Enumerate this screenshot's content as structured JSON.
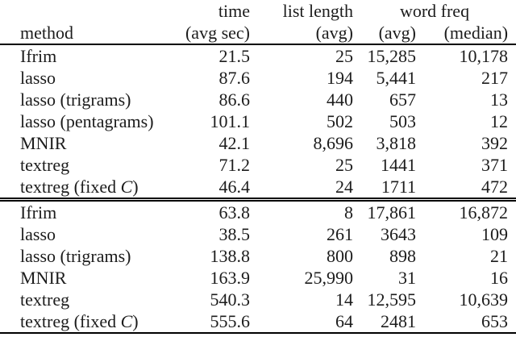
{
  "table": {
    "header": {
      "group": {
        "method": "",
        "time": "time",
        "list_length": "list length",
        "word_freq": "word freq"
      },
      "sub": {
        "method": "method",
        "time": "(avg sec)",
        "list_length": "(avg)",
        "word_freq_avg": "(avg)",
        "word_freq_median": "(median)"
      }
    },
    "sections": [
      {
        "rows": [
          {
            "method": [
              {
                "t": "Ifrim"
              }
            ],
            "time": "21.5",
            "list_length": "25",
            "wf_avg": "15,285",
            "wf_median": "10,178"
          },
          {
            "method": [
              {
                "t": "lasso"
              }
            ],
            "time": "87.6",
            "list_length": "194",
            "wf_avg": "5,441",
            "wf_median": "217"
          },
          {
            "method": [
              {
                "t": "lasso (trigrams)"
              }
            ],
            "time": "86.6",
            "list_length": "440",
            "wf_avg": "657",
            "wf_median": "13"
          },
          {
            "method": [
              {
                "t": "lasso (pentagrams)"
              }
            ],
            "time": "101.1",
            "list_length": "502",
            "wf_avg": "503",
            "wf_median": "12"
          },
          {
            "method": [
              {
                "t": "MNIR"
              }
            ],
            "time": "42.1",
            "list_length": "8,696",
            "wf_avg": "3,818",
            "wf_median": "392"
          },
          {
            "method": [
              {
                "t": "textreg"
              }
            ],
            "time": "71.2",
            "list_length": "25",
            "wf_avg": "1441",
            "wf_median": "371"
          },
          {
            "method": [
              {
                "t": "textreg (fixed "
              },
              {
                "t": "C",
                "i": true
              },
              {
                "t": ")"
              }
            ],
            "time": "46.4",
            "list_length": "24",
            "wf_avg": "1711",
            "wf_median": "472"
          }
        ]
      },
      {
        "rows": [
          {
            "method": [
              {
                "t": "Ifrim"
              }
            ],
            "time": "63.8",
            "list_length": "8",
            "wf_avg": "17,861",
            "wf_median": "16,872"
          },
          {
            "method": [
              {
                "t": "lasso"
              }
            ],
            "time": "38.5",
            "list_length": "261",
            "wf_avg": "3643",
            "wf_median": "109"
          },
          {
            "method": [
              {
                "t": "lasso (trigrams)"
              }
            ],
            "time": "138.8",
            "list_length": "800",
            "wf_avg": "898",
            "wf_median": "21"
          },
          {
            "method": [
              {
                "t": "MNIR"
              }
            ],
            "time": "163.9",
            "list_length": "25,990",
            "wf_avg": "31",
            "wf_median": "16"
          },
          {
            "method": [
              {
                "t": "textreg"
              }
            ],
            "time": "540.3",
            "list_length": "14",
            "wf_avg": "12,595",
            "wf_median": "10,639"
          },
          {
            "method": [
              {
                "t": "textreg (fixed "
              },
              {
                "t": "C",
                "i": true
              },
              {
                "t": ")"
              }
            ],
            "time": "555.6",
            "list_length": "64",
            "wf_avg": "2481",
            "wf_median": "653"
          }
        ]
      }
    ]
  },
  "colors": {
    "text": "#1c1c1c",
    "rule": "#000000",
    "background": "#ffffff"
  }
}
